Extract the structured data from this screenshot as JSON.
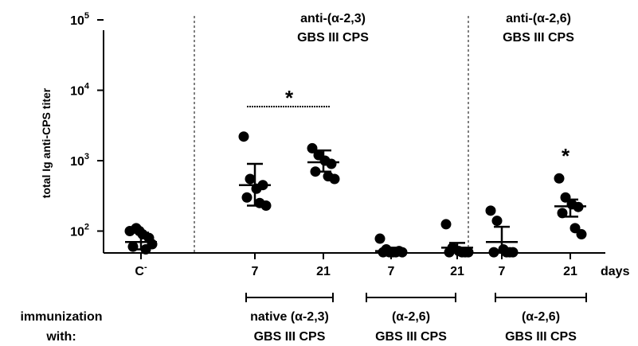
{
  "chart_data": {
    "type": "scatter",
    "ylabel": "total Ig anti-CPS titer",
    "y_scale": "log",
    "ylim": [
      50,
      100000
    ],
    "y_ticks": [
      {
        "value": 100,
        "base": "10",
        "exp": "2"
      },
      {
        "value": 1000,
        "base": "10",
        "exp": "3"
      },
      {
        "value": 10000,
        "base": "10",
        "exp": "4"
      },
      {
        "value": 100000,
        "base": "10",
        "exp": "5"
      }
    ],
    "x_unit_label": "days",
    "section_titles": [
      {
        "id": "a23",
        "line1": "anti-(α-2,3)",
        "line2": "GBS III CPS"
      },
      {
        "id": "a26",
        "line1": "anti-(α-2,6)",
        "line2": "GBS III CPS"
      }
    ],
    "immunization": {
      "label_line1": "immunization",
      "label_line2": "with:",
      "groups": [
        {
          "line1": "native (α-2,3)",
          "line2": "GBS III CPS"
        },
        {
          "line1": "(α-2,6)",
          "line2": "GBS III CPS"
        },
        {
          "line1": "(α-2,6)",
          "line2": "GBS III CPS"
        }
      ]
    },
    "significance_marks": [
      "*",
      "*"
    ],
    "series": [
      {
        "label": "C",
        "label_sup": "-",
        "mean": 70,
        "sd_low": 55,
        "sd_high": 95,
        "points": [
          100,
          110,
          90,
          80,
          60,
          55,
          65,
          100
        ]
      },
      {
        "label": "7",
        "mean": 450,
        "sd_low": 230,
        "sd_high": 900,
        "points": [
          2200,
          550,
          400,
          450,
          300,
          250,
          230
        ]
      },
      {
        "label": "21",
        "mean": 950,
        "sd_low": 700,
        "sd_high": 1400,
        "points": [
          1500,
          1200,
          1000,
          900,
          700,
          600,
          550
        ]
      },
      {
        "label": "7",
        "mean": 52,
        "sd_low": 50,
        "sd_high": 58,
        "points": [
          78,
          55,
          50,
          52,
          50,
          50,
          50,
          50
        ]
      },
      {
        "label": "21",
        "mean": 58,
        "sd_low": 50,
        "sd_high": 68,
        "points": [
          125,
          58,
          52,
          50,
          50,
          50,
          50
        ]
      },
      {
        "label": "7",
        "mean": 70,
        "sd_low": 50,
        "sd_high": 115,
        "points": [
          195,
          140,
          55,
          50,
          50,
          50,
          50
        ]
      },
      {
        "label": "21",
        "mean": 225,
        "sd_low": 160,
        "sd_high": 280,
        "points": [
          560,
          300,
          240,
          220,
          180,
          110,
          90
        ]
      }
    ]
  }
}
